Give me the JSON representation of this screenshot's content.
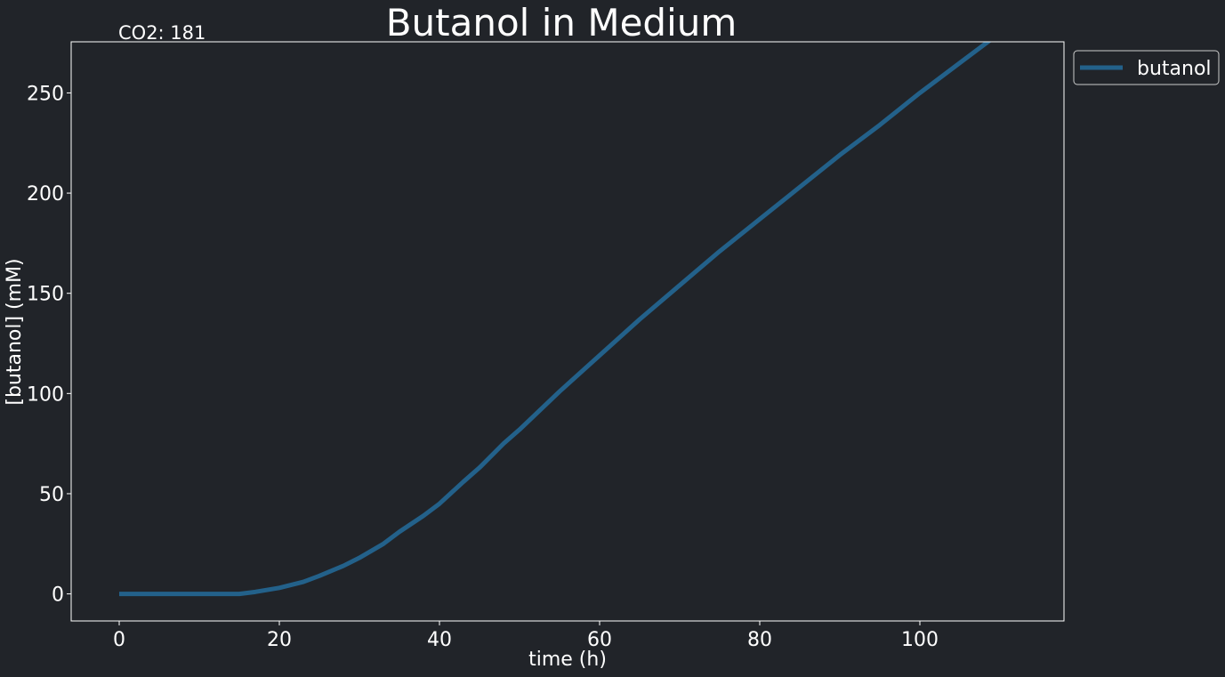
{
  "chart_data": {
    "type": "line",
    "title": "Butanol in Medium",
    "annotation": "CO2: 181",
    "xlabel": "time (h)",
    "ylabel": "[butanol] (mM)",
    "xlim": [
      -6,
      118
    ],
    "ylim": [
      -13.5,
      275.5
    ],
    "xticks": [
      0,
      20,
      40,
      60,
      80,
      100
    ],
    "yticks": [
      0,
      50,
      100,
      150,
      200,
      250
    ],
    "grid": false,
    "legend_position": "outside-top-right",
    "colors": {
      "background": "#212429",
      "line": "#23618a",
      "text": "#ffffff",
      "axes": "#ffffff"
    },
    "series": [
      {
        "name": "butanol",
        "x": [
          0,
          5,
          10,
          15,
          17,
          20,
          23,
          25,
          28,
          30,
          33,
          35,
          38,
          40,
          43,
          45,
          48,
          50,
          55,
          60,
          65,
          70,
          75,
          80,
          85,
          90,
          95,
          100,
          105,
          110,
          114
        ],
        "y": [
          0,
          0,
          0,
          0,
          1,
          3,
          6,
          9,
          14,
          18,
          25,
          31,
          39,
          45,
          56,
          63,
          75,
          82,
          101,
          119,
          137,
          154,
          171,
          187,
          203,
          219,
          234,
          250,
          265,
          280,
          292
        ]
      }
    ]
  }
}
